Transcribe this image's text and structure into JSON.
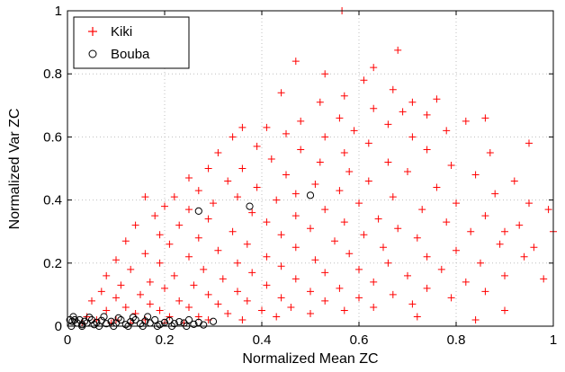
{
  "chart_data": {
    "type": "scatter",
    "xlabel": "Normalized Mean ZC",
    "ylabel": "Normalized Var ZC",
    "xlim": [
      0,
      1
    ],
    "ylim": [
      0,
      1
    ],
    "xticks": [
      "0",
      "0.2",
      "0.4",
      "0.6",
      "0.8",
      "1"
    ],
    "yticks": [
      "0",
      "0.2",
      "0.4",
      "0.6",
      "0.8",
      "1"
    ],
    "grid": true,
    "grid_style": "dotted",
    "legend_position": "top-left",
    "series": [
      {
        "name": "Kiki",
        "marker": "plus",
        "color": "#ff0000",
        "points": [
          [
            0.565,
            1.0
          ],
          [
            0.68,
            0.875
          ],
          [
            0.47,
            0.84
          ],
          [
            0.63,
            0.82
          ],
          [
            0.53,
            0.8
          ],
          [
            0.61,
            0.78
          ],
          [
            0.67,
            0.75
          ],
          [
            0.44,
            0.74
          ],
          [
            0.57,
            0.73
          ],
          [
            0.76,
            0.72
          ],
          [
            0.71,
            0.71
          ],
          [
            0.52,
            0.71
          ],
          [
            0.63,
            0.69
          ],
          [
            0.69,
            0.68
          ],
          [
            0.74,
            0.67
          ],
          [
            0.56,
            0.66
          ],
          [
            0.82,
            0.65
          ],
          [
            0.86,
            0.66
          ],
          [
            0.48,
            0.65
          ],
          [
            0.66,
            0.64
          ],
          [
            0.36,
            0.63
          ],
          [
            0.41,
            0.63
          ],
          [
            0.59,
            0.62
          ],
          [
            0.78,
            0.62
          ],
          [
            0.45,
            0.61
          ],
          [
            0.53,
            0.6
          ],
          [
            0.71,
            0.6
          ],
          [
            0.34,
            0.6
          ],
          [
            0.95,
            0.58
          ],
          [
            0.62,
            0.58
          ],
          [
            0.39,
            0.57
          ],
          [
            0.48,
            0.56
          ],
          [
            0.74,
            0.56
          ],
          [
            0.87,
            0.55
          ],
          [
            0.57,
            0.55
          ],
          [
            0.31,
            0.55
          ],
          [
            0.42,
            0.53
          ],
          [
            0.66,
            0.52
          ],
          [
            0.52,
            0.52
          ],
          [
            0.79,
            0.51
          ],
          [
            0.29,
            0.5
          ],
          [
            0.36,
            0.5
          ],
          [
            0.58,
            0.49
          ],
          [
            0.7,
            0.49
          ],
          [
            0.45,
            0.48
          ],
          [
            0.84,
            0.48
          ],
          [
            0.25,
            0.47
          ],
          [
            0.33,
            0.46
          ],
          [
            0.62,
            0.46
          ],
          [
            0.51,
            0.45
          ],
          [
            0.92,
            0.46
          ],
          [
            0.39,
            0.44
          ],
          [
            0.27,
            0.43
          ],
          [
            0.76,
            0.44
          ],
          [
            0.56,
            0.43
          ],
          [
            0.47,
            0.42
          ],
          [
            0.88,
            0.42
          ],
          [
            0.22,
            0.41
          ],
          [
            0.16,
            0.41
          ],
          [
            0.35,
            0.41
          ],
          [
            0.67,
            0.41
          ],
          [
            0.43,
            0.4
          ],
          [
            0.3,
            0.39
          ],
          [
            0.6,
            0.39
          ],
          [
            0.8,
            0.39
          ],
          [
            0.95,
            0.39
          ],
          [
            0.2,
            0.38
          ],
          [
            0.25,
            0.37
          ],
          [
            0.53,
            0.37
          ],
          [
            0.73,
            0.37
          ],
          [
            0.99,
            0.37
          ],
          [
            0.38,
            0.36
          ],
          [
            0.47,
            0.35
          ],
          [
            0.86,
            0.35
          ],
          [
            0.18,
            0.35
          ],
          [
            0.64,
            0.34
          ],
          [
            0.29,
            0.34
          ],
          [
            0.57,
            0.33
          ],
          [
            0.41,
            0.33
          ],
          [
            0.78,
            0.33
          ],
          [
            0.93,
            0.32
          ],
          [
            0.14,
            0.32
          ],
          [
            0.23,
            0.32
          ],
          [
            0.68,
            0.31
          ],
          [
            0.5,
            0.31
          ],
          [
            0.34,
            0.3
          ],
          [
            0.83,
            0.3
          ],
          [
            0.19,
            0.29
          ],
          [
            0.44,
            0.29
          ],
          [
            0.61,
            0.29
          ],
          [
            1.0,
            0.3
          ],
          [
            0.27,
            0.28
          ],
          [
            0.72,
            0.28
          ],
          [
            0.12,
            0.27
          ],
          [
            0.55,
            0.27
          ],
          [
            0.37,
            0.26
          ],
          [
            0.89,
            0.26
          ],
          [
            0.21,
            0.26
          ],
          [
            0.47,
            0.25
          ],
          [
            0.65,
            0.25
          ],
          [
            0.31,
            0.24
          ],
          [
            0.8,
            0.24
          ],
          [
            0.16,
            0.23
          ],
          [
            0.58,
            0.23
          ],
          [
            0.41,
            0.22
          ],
          [
            0.74,
            0.22
          ],
          [
            0.25,
            0.22
          ],
          [
            0.94,
            0.22
          ],
          [
            0.1,
            0.21
          ],
          [
            0.51,
            0.21
          ],
          [
            0.35,
            0.2
          ],
          [
            0.66,
            0.2
          ],
          [
            0.19,
            0.2
          ],
          [
            0.85,
            0.2
          ],
          [
            0.44,
            0.19
          ],
          [
            0.28,
            0.18
          ],
          [
            0.6,
            0.18
          ],
          [
            0.13,
            0.18
          ],
          [
            0.77,
            0.18
          ],
          [
            0.38,
            0.17
          ],
          [
            0.53,
            0.17
          ],
          [
            0.22,
            0.16
          ],
          [
            0.7,
            0.16
          ],
          [
            0.08,
            0.16
          ],
          [
            0.9,
            0.16
          ],
          [
            0.32,
            0.15
          ],
          [
            0.47,
            0.15
          ],
          [
            0.17,
            0.14
          ],
          [
            0.63,
            0.14
          ],
          [
            0.82,
            0.14
          ],
          [
            0.26,
            0.13
          ],
          [
            0.41,
            0.13
          ],
          [
            0.11,
            0.13
          ],
          [
            0.56,
            0.12
          ],
          [
            0.74,
            0.12
          ],
          [
            0.2,
            0.12
          ],
          [
            0.35,
            0.11
          ],
          [
            0.5,
            0.11
          ],
          [
            0.07,
            0.11
          ],
          [
            0.67,
            0.1
          ],
          [
            0.86,
            0.11
          ],
          [
            0.15,
            0.1
          ],
          [
            0.29,
            0.1
          ],
          [
            0.44,
            0.09
          ],
          [
            0.6,
            0.09
          ],
          [
            0.79,
            0.09
          ],
          [
            0.1,
            0.09
          ],
          [
            0.23,
            0.08
          ],
          [
            0.37,
            0.08
          ],
          [
            0.53,
            0.08
          ],
          [
            0.71,
            0.07
          ],
          [
            0.05,
            0.08
          ],
          [
            0.17,
            0.07
          ],
          [
            0.31,
            0.07
          ],
          [
            0.46,
            0.06
          ],
          [
            0.63,
            0.06
          ],
          [
            0.12,
            0.06
          ],
          [
            0.25,
            0.06
          ],
          [
            0.4,
            0.05
          ],
          [
            0.57,
            0.05
          ],
          [
            0.08,
            0.05
          ],
          [
            0.19,
            0.05
          ],
          [
            0.33,
            0.04
          ],
          [
            0.5,
            0.04
          ],
          [
            0.14,
            0.04
          ],
          [
            0.27,
            0.03
          ],
          [
            0.04,
            0.03
          ],
          [
            0.43,
            0.03
          ],
          [
            0.21,
            0.03
          ],
          [
            0.1,
            0.02
          ],
          [
            0.36,
            0.02
          ],
          [
            0.16,
            0.02
          ],
          [
            0.06,
            0.02
          ],
          [
            0.29,
            0.02
          ],
          [
            0.24,
            0.01
          ],
          [
            0.13,
            0.01
          ],
          [
            0.03,
            0.01
          ],
          [
            0.2,
            0.01
          ],
          [
            0.09,
            0.01
          ],
          [
            0.72,
            0.03
          ],
          [
            0.9,
            0.05
          ],
          [
            0.84,
            0.02
          ],
          [
            0.98,
            0.15
          ],
          [
            0.96,
            0.25
          ],
          [
            0.9,
            0.3
          ]
        ]
      },
      {
        "name": "Bouba",
        "marker": "circle",
        "color": "#000000",
        "points": [
          [
            0.5,
            0.415
          ],
          [
            0.27,
            0.365
          ],
          [
            0.375,
            0.38
          ],
          [
            0.005,
            0.02
          ],
          [
            0.01,
            0.015
          ],
          [
            0.015,
            0.02
          ],
          [
            0.02,
            0.01
          ],
          [
            0.025,
            0.02
          ],
          [
            0.03,
            0.005
          ],
          [
            0.035,
            0.015
          ],
          [
            0.04,
            0.01
          ],
          [
            0.05,
            0.02
          ],
          [
            0.055,
            0.005
          ],
          [
            0.06,
            0.012
          ],
          [
            0.07,
            0.018
          ],
          [
            0.08,
            0.008
          ],
          [
            0.09,
            0.015
          ],
          [
            0.1,
            0.01
          ],
          [
            0.11,
            0.02
          ],
          [
            0.12,
            0.005
          ],
          [
            0.13,
            0.014
          ],
          [
            0.14,
            0.02
          ],
          [
            0.15,
            0.008
          ],
          [
            0.16,
            0.016
          ],
          [
            0.17,
            0.01
          ],
          [
            0.18,
            0.02
          ],
          [
            0.19,
            0.005
          ],
          [
            0.2,
            0.012
          ],
          [
            0.21,
            0.018
          ],
          [
            0.22,
            0.008
          ],
          [
            0.23,
            0.014
          ],
          [
            0.24,
            0.01
          ],
          [
            0.25,
            0.02
          ],
          [
            0.26,
            0.006
          ],
          [
            0.27,
            0.012
          ],
          [
            0.28,
            0.004
          ],
          [
            0.3,
            0.015
          ],
          [
            0.012,
            0.03
          ],
          [
            0.045,
            0.028
          ],
          [
            0.075,
            0.03
          ],
          [
            0.105,
            0.026
          ],
          [
            0.135,
            0.028
          ],
          [
            0.165,
            0.03
          ],
          [
            0.008,
            0.0
          ],
          [
            0.03,
            0.0
          ],
          [
            0.065,
            0.0
          ],
          [
            0.095,
            0.0
          ],
          [
            0.125,
            0.0
          ],
          [
            0.155,
            0.0
          ],
          [
            0.185,
            0.0
          ],
          [
            0.215,
            0.0
          ],
          [
            0.245,
            0.0
          ]
        ]
      }
    ]
  }
}
